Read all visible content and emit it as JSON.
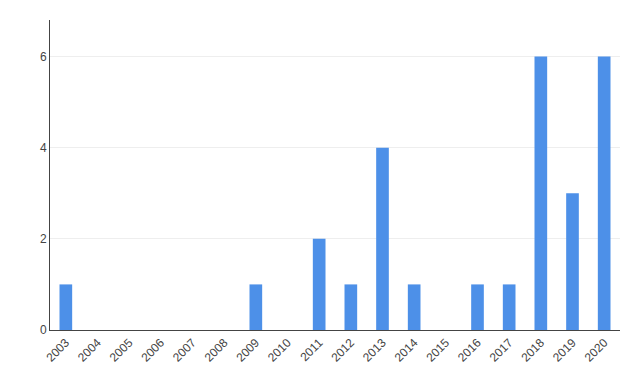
{
  "chart_data": {
    "type": "bar",
    "categories": [
      "2003",
      "2004",
      "2005",
      "2006",
      "2007",
      "2008",
      "2009",
      "2010",
      "2011",
      "2012",
      "2013",
      "2014",
      "2015",
      "2016",
      "2017",
      "2018",
      "2019",
      "2020"
    ],
    "values": [
      1,
      0,
      0,
      0,
      0,
      0,
      1,
      0,
      2,
      1,
      4,
      1,
      0,
      1,
      1,
      6,
      3,
      6
    ],
    "color": "#4d90e8",
    "ylim": [
      0,
      6.8
    ],
    "yticks": [
      0,
      2,
      4,
      6
    ],
    "grid": true
  }
}
